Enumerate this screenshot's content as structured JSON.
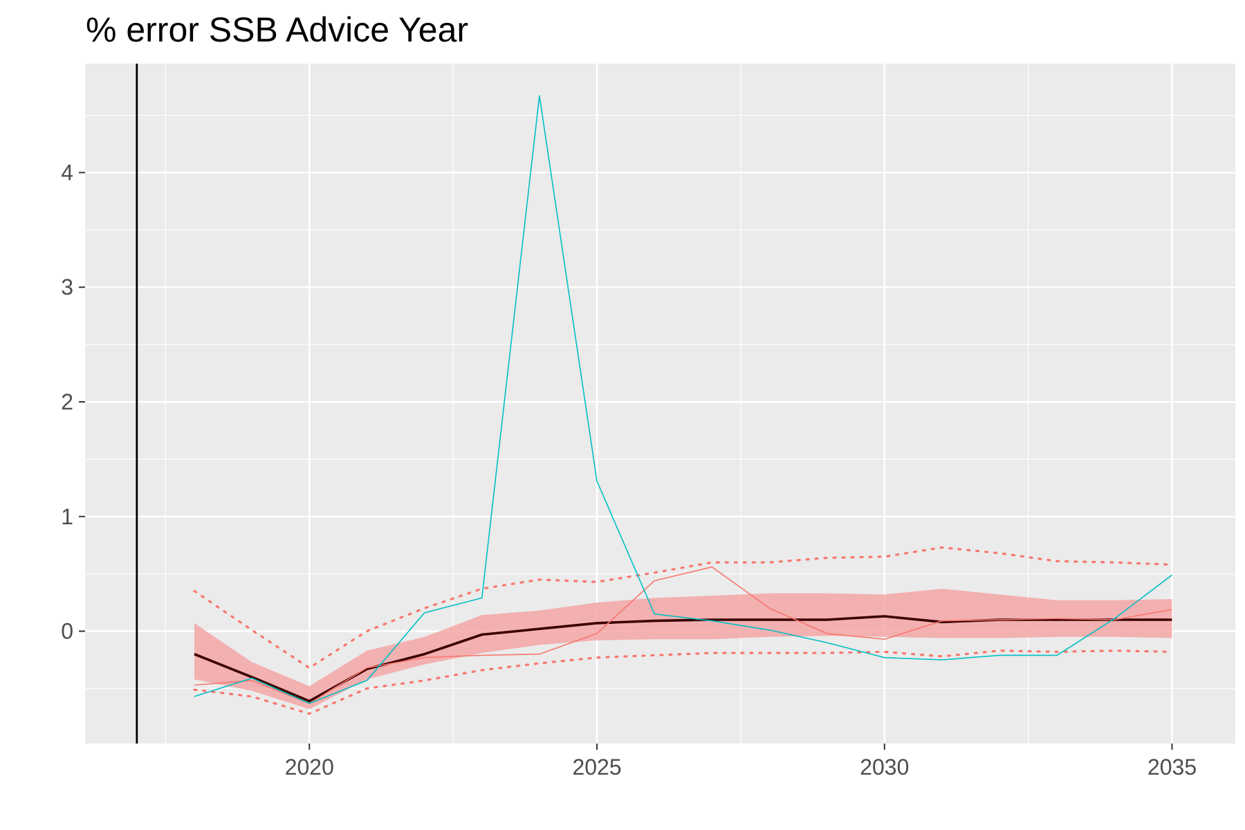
{
  "title": "% error SSB Advice Year",
  "colors": {
    "panel_background": "#EBEBEB",
    "grid": "#FFFFFF",
    "band_fill": "#F4A6A6",
    "median_line": "#3B0000",
    "quantile_dotted": "#F8766D",
    "series_red": "#F8766D",
    "series_cyan": "#00BFC4",
    "reference_line": "#000000"
  },
  "chart_data": {
    "type": "line",
    "title": "% error SSB Advice Year",
    "xlabel": "",
    "ylabel": "",
    "xlim": [
      2016.1,
      2036.1
    ],
    "ylim": [
      -0.98,
      4.95
    ],
    "x_ticks": [
      2020,
      2025,
      2030,
      2035
    ],
    "y_ticks": [
      0,
      1,
      2,
      3,
      4
    ],
    "grid": true,
    "legend": "none",
    "vertical_reference_line_x": 2017,
    "x": [
      2018,
      2019,
      2020,
      2021,
      2022,
      2023,
      2024,
      2025,
      2026,
      2027,
      2028,
      2029,
      2030,
      2031,
      2032,
      2033,
      2034,
      2035
    ],
    "band": {
      "lower": [
        -0.42,
        -0.52,
        -0.68,
        -0.42,
        -0.29,
        -0.19,
        -0.12,
        -0.08,
        -0.07,
        -0.07,
        -0.05,
        -0.04,
        -0.05,
        -0.06,
        -0.06,
        -0.05,
        -0.05,
        -0.06
      ],
      "upper": [
        0.07,
        -0.27,
        -0.48,
        -0.17,
        -0.05,
        0.14,
        0.18,
        0.25,
        0.29,
        0.31,
        0.33,
        0.33,
        0.32,
        0.37,
        0.32,
        0.27,
        0.27,
        0.28
      ]
    },
    "median": [
      -0.2,
      -0.4,
      -0.61,
      -0.33,
      -0.2,
      -0.03,
      0.02,
      0.07,
      0.09,
      0.1,
      0.1,
      0.1,
      0.13,
      0.08,
      0.1,
      0.1,
      0.1,
      0.1
    ],
    "quantile_upper": [
      0.35,
      0.01,
      -0.32,
      0.0,
      0.2,
      0.37,
      0.45,
      0.43,
      0.51,
      0.6,
      0.6,
      0.64,
      0.65,
      0.73,
      0.68,
      0.61,
      0.6,
      0.58
    ],
    "quantile_lower": [
      -0.51,
      -0.57,
      -0.72,
      -0.5,
      -0.43,
      -0.34,
      -0.28,
      -0.23,
      -0.21,
      -0.19,
      -0.19,
      -0.19,
      -0.18,
      -0.22,
      -0.17,
      -0.18,
      -0.17,
      -0.18
    ],
    "series": [
      {
        "values": [
          -0.47,
          -0.43,
          -0.63,
          -0.32,
          -0.23,
          -0.21,
          -0.2,
          -0.02,
          0.44,
          0.56,
          0.2,
          -0.02,
          -0.07,
          0.09,
          0.1,
          0.11,
          0.1,
          0.19
        ]
      },
      {
        "values": [
          -0.57,
          -0.41,
          -0.63,
          -0.43,
          0.16,
          0.29,
          4.67,
          1.31,
          0.15,
          0.09,
          0.01,
          -0.1,
          -0.23,
          -0.25,
          -0.21,
          -0.21,
          0.11,
          0.49
        ]
      }
    ]
  }
}
